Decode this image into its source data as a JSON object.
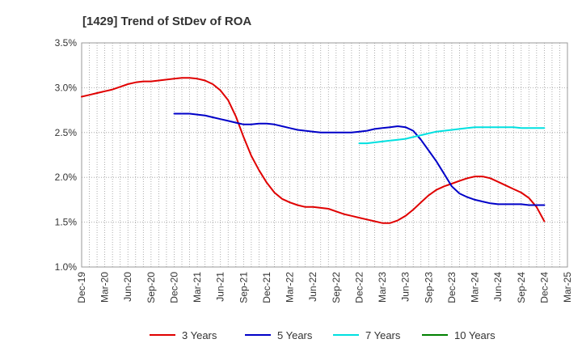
{
  "chart_data": {
    "type": "line",
    "title": "[1429]  Trend of StDev of ROA",
    "xlabel": "",
    "ylabel": "",
    "x_tick_labels": [
      "Dec-19",
      "Mar-20",
      "Jun-20",
      "Sep-20",
      "Dec-20",
      "Mar-21",
      "Jun-21",
      "Sep-21",
      "Dec-21",
      "Mar-22",
      "Jun-22",
      "Sep-22",
      "Dec-22",
      "Mar-23",
      "Jun-23",
      "Sep-23",
      "Dec-23",
      "Mar-24",
      "Jun-24",
      "Sep-24",
      "Dec-24",
      "Mar-25"
    ],
    "y_tick_labels": [
      "1.0%",
      "1.5%",
      "2.0%",
      "2.5%",
      "3.0%",
      "3.5%"
    ],
    "ylim": [
      1.0,
      3.5
    ],
    "y_unit": "%",
    "grid": true,
    "legend_position": "bottom",
    "series": [
      {
        "name": "3 Years",
        "color": "#e00000",
        "x": [
          "Dec-19",
          "Jan-20",
          "Feb-20",
          "Mar-20",
          "Apr-20",
          "May-20",
          "Jun-20",
          "Jul-20",
          "Aug-20",
          "Sep-20",
          "Oct-20",
          "Nov-20",
          "Dec-20",
          "Jan-21",
          "Feb-21",
          "Mar-21",
          "Apr-21",
          "May-21",
          "Jun-21",
          "Jul-21",
          "Aug-21",
          "Sep-21",
          "Oct-21",
          "Nov-21",
          "Dec-21",
          "Jan-22",
          "Feb-22",
          "Mar-22",
          "Apr-22",
          "May-22",
          "Jun-22",
          "Jul-22",
          "Aug-22",
          "Sep-22",
          "Oct-22",
          "Nov-22",
          "Dec-22",
          "Jan-23",
          "Feb-23",
          "Mar-23",
          "Apr-23",
          "May-23",
          "Jun-23",
          "Jul-23",
          "Aug-23",
          "Sep-23",
          "Oct-23",
          "Nov-23",
          "Dec-23",
          "Jan-24",
          "Feb-24",
          "Mar-24",
          "Apr-24",
          "May-24",
          "Jun-24",
          "Jul-24",
          "Aug-24",
          "Sep-24",
          "Oct-24",
          "Nov-24",
          "Dec-24"
        ],
        "values": [
          2.9,
          2.92,
          2.94,
          2.96,
          2.98,
          3.01,
          3.04,
          3.06,
          3.07,
          3.07,
          3.08,
          3.09,
          3.1,
          3.11,
          3.11,
          3.1,
          3.08,
          3.04,
          2.97,
          2.86,
          2.68,
          2.45,
          2.24,
          2.08,
          1.94,
          1.83,
          1.76,
          1.72,
          1.69,
          1.67,
          1.67,
          1.66,
          1.65,
          1.62,
          1.59,
          1.57,
          1.55,
          1.53,
          1.51,
          1.49,
          1.49,
          1.52,
          1.57,
          1.64,
          1.72,
          1.8,
          1.86,
          1.9,
          1.93,
          1.96,
          1.99,
          2.01,
          2.01,
          1.99,
          1.95,
          1.91,
          1.87,
          1.83,
          1.77,
          1.67,
          1.51
        ]
      },
      {
        "name": "5 Years",
        "color": "#0000c8",
        "x": [
          "Dec-20",
          "Jan-21",
          "Feb-21",
          "Mar-21",
          "Apr-21",
          "May-21",
          "Jun-21",
          "Jul-21",
          "Aug-21",
          "Sep-21",
          "Oct-21",
          "Nov-21",
          "Dec-21",
          "Jan-22",
          "Feb-22",
          "Mar-22",
          "Apr-22",
          "May-22",
          "Jun-22",
          "Jul-22",
          "Aug-22",
          "Sep-22",
          "Oct-22",
          "Nov-22",
          "Dec-22",
          "Jan-23",
          "Feb-23",
          "Mar-23",
          "Apr-23",
          "May-23",
          "Jun-23",
          "Jul-23",
          "Aug-23",
          "Sep-23",
          "Oct-23",
          "Nov-23",
          "Dec-23",
          "Jan-24",
          "Feb-24",
          "Mar-24",
          "Apr-24",
          "May-24",
          "Jun-24",
          "Jul-24",
          "Aug-24",
          "Sep-24",
          "Oct-24",
          "Nov-24",
          "Dec-24"
        ],
        "values": [
          2.71,
          2.71,
          2.71,
          2.7,
          2.69,
          2.67,
          2.65,
          2.63,
          2.61,
          2.59,
          2.59,
          2.6,
          2.6,
          2.59,
          2.57,
          2.55,
          2.53,
          2.52,
          2.51,
          2.5,
          2.5,
          2.5,
          2.5,
          2.5,
          2.51,
          2.52,
          2.54,
          2.55,
          2.56,
          2.57,
          2.56,
          2.52,
          2.42,
          2.3,
          2.18,
          2.04,
          1.9,
          1.82,
          1.78,
          1.75,
          1.73,
          1.71,
          1.7,
          1.7,
          1.7,
          1.7,
          1.69,
          1.69,
          1.69
        ]
      },
      {
        "name": "7 Years",
        "color": "#00e0e0",
        "x": [
          "Dec-22",
          "Jan-23",
          "Feb-23",
          "Mar-23",
          "Apr-23",
          "May-23",
          "Jun-23",
          "Jul-23",
          "Aug-23",
          "Sep-23",
          "Oct-23",
          "Nov-23",
          "Dec-23",
          "Jan-24",
          "Feb-24",
          "Mar-24",
          "Apr-24",
          "May-24",
          "Jun-24",
          "Jul-24",
          "Aug-24",
          "Sep-24",
          "Oct-24",
          "Nov-24",
          "Dec-24"
        ],
        "values": [
          2.38,
          2.38,
          2.39,
          2.4,
          2.41,
          2.42,
          2.43,
          2.45,
          2.47,
          2.49,
          2.51,
          2.52,
          2.53,
          2.54,
          2.55,
          2.56,
          2.56,
          2.56,
          2.56,
          2.56,
          2.56,
          2.55,
          2.55,
          2.55,
          2.55
        ]
      },
      {
        "name": "10 Years",
        "color": "#008000",
        "x": [],
        "values": []
      }
    ]
  }
}
